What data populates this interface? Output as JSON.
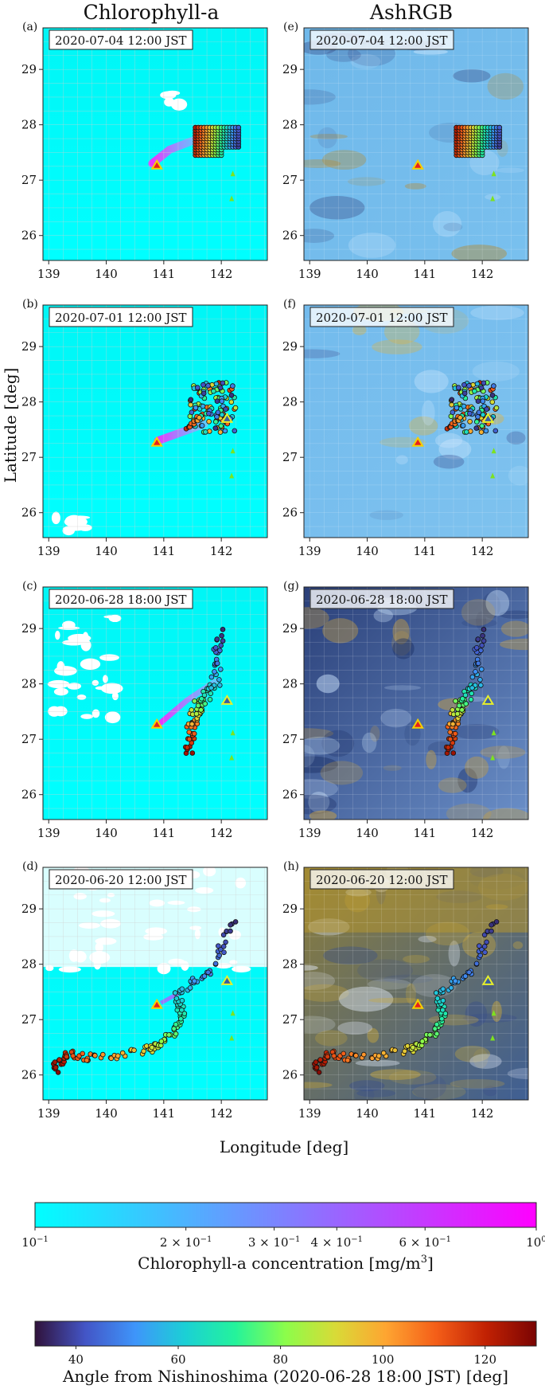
{
  "column_titles": {
    "left": "Chlorophyll-a",
    "right": "AshRGB"
  },
  "axis_labels": {
    "y": "Latitude [deg]",
    "x": "Longitude [deg]"
  },
  "panels": [
    {
      "letter": "(a)",
      "timestamp": "2020-07-04 12:00 JST",
      "product": "Chlorophyll-a"
    },
    {
      "letter": "(b)",
      "timestamp": "2020-07-01 12:00 JST",
      "product": "Chlorophyll-a"
    },
    {
      "letter": "(c)",
      "timestamp": "2020-06-28 18:00 JST",
      "product": "Chlorophyll-a"
    },
    {
      "letter": "(d)",
      "timestamp": "2020-06-20 12:00 JST",
      "product": "Chlorophyll-a"
    },
    {
      "letter": "(e)",
      "timestamp": "2020-07-04 12:00 JST",
      "product": "AshRGB"
    },
    {
      "letter": "(f)",
      "timestamp": "2020-07-01 12:00 JST",
      "product": "AshRGB"
    },
    {
      "letter": "(g)",
      "timestamp": "2020-06-28 18:00 JST",
      "product": "AshRGB"
    },
    {
      "letter": "(h)",
      "timestamp": "2020-06-20 12:00 JST",
      "product": "AshRGB"
    }
  ],
  "chart_data": {
    "type": "scatter",
    "x_range": [
      138.9,
      142.8
    ],
    "y_range": [
      25.55,
      29.75
    ],
    "x_ticks": [
      139,
      140,
      141,
      142
    ],
    "y_ticks": [
      26,
      27,
      28,
      29
    ],
    "grid": true,
    "markers": {
      "nishinoshima": {
        "lon": 140.88,
        "lat": 27.25
      },
      "secondary": {
        "lon": 142.1,
        "lat": 27.68
      }
    },
    "colorbars": [
      {
        "label_pre": "Chlorophyll-a concentration [mg/m",
        "label_sup": "3",
        "label_post": "]",
        "scale": "log",
        "range": [
          0.1,
          1.0
        ],
        "ticks": [
          {
            "value": 0.1,
            "mant": "10",
            "exp": "−1"
          },
          {
            "value": 0.2,
            "mant": "2 × 10",
            "exp": "−1"
          },
          {
            "value": 0.3,
            "mant": "3 × 10",
            "exp": "−1"
          },
          {
            "value": 0.4,
            "mant": "4 × 10",
            "exp": "−1"
          },
          {
            "value": 0.6,
            "mant": "6 × 10",
            "exp": "−1"
          },
          {
            "value": 1.0,
            "mant": "10",
            "exp": "0"
          }
        ],
        "colors": [
          "#00ffff",
          "#ff00ff"
        ]
      },
      {
        "label": "Angle from Nishinoshima (2020-06-28 18:00 JST) [deg]",
        "scale": "linear",
        "range": [
          32,
          130
        ],
        "ticks": [
          40,
          60,
          80,
          100,
          120
        ],
        "colormap": "turbo"
      }
    ]
  }
}
